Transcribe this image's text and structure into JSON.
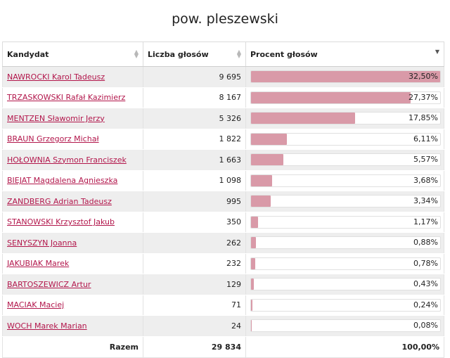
{
  "title": "pow. pleszewski",
  "columns": {
    "candidate": "Kandydat",
    "votes": "Liczba głosów",
    "percent": "Procent głosów"
  },
  "rows": [
    {
      "name": "NAWROCKI Karol Tadeusz",
      "votes": "9 695",
      "percent": "32,50%",
      "share": 32.5
    },
    {
      "name": "TRZASKOWSKI Rafał Kazimierz",
      "votes": "8 167",
      "percent": "27,37%",
      "share": 27.37
    },
    {
      "name": "MENTZEN Sławomir Jerzy",
      "votes": "5 326",
      "percent": "17,85%",
      "share": 17.85
    },
    {
      "name": "BRAUN Grzegorz Michał",
      "votes": "1 822",
      "percent": "6,11%",
      "share": 6.11
    },
    {
      "name": "HOŁOWNIA Szymon Franciszek",
      "votes": "1 663",
      "percent": "5,57%",
      "share": 5.57
    },
    {
      "name": "BIEJAT Magdalena Agnieszka",
      "votes": "1 098",
      "percent": "3,68%",
      "share": 3.68
    },
    {
      "name": "ZANDBERG Adrian Tadeusz",
      "votes": "995",
      "percent": "3,34%",
      "share": 3.34
    },
    {
      "name": "STANOWSKI Krzysztof Jakub",
      "votes": "350",
      "percent": "1,17%",
      "share": 1.17
    },
    {
      "name": "SENYSZYN Joanna",
      "votes": "262",
      "percent": "0,88%",
      "share": 0.88
    },
    {
      "name": "JAKUBIAK Marek",
      "votes": "232",
      "percent": "0,78%",
      "share": 0.78
    },
    {
      "name": "BARTOSZEWICZ Artur",
      "votes": "129",
      "percent": "0,43%",
      "share": 0.43
    },
    {
      "name": "MACIAK Maciej",
      "votes": "71",
      "percent": "0,24%",
      "share": 0.24
    },
    {
      "name": "WOCH Marek Marian",
      "votes": "24",
      "percent": "0,08%",
      "share": 0.08
    }
  ],
  "total": {
    "label": "Razem",
    "votes": "29 834",
    "percent": "100,00%"
  },
  "colors": {
    "bar": "#d99aa8",
    "link": "#b2164b"
  }
}
